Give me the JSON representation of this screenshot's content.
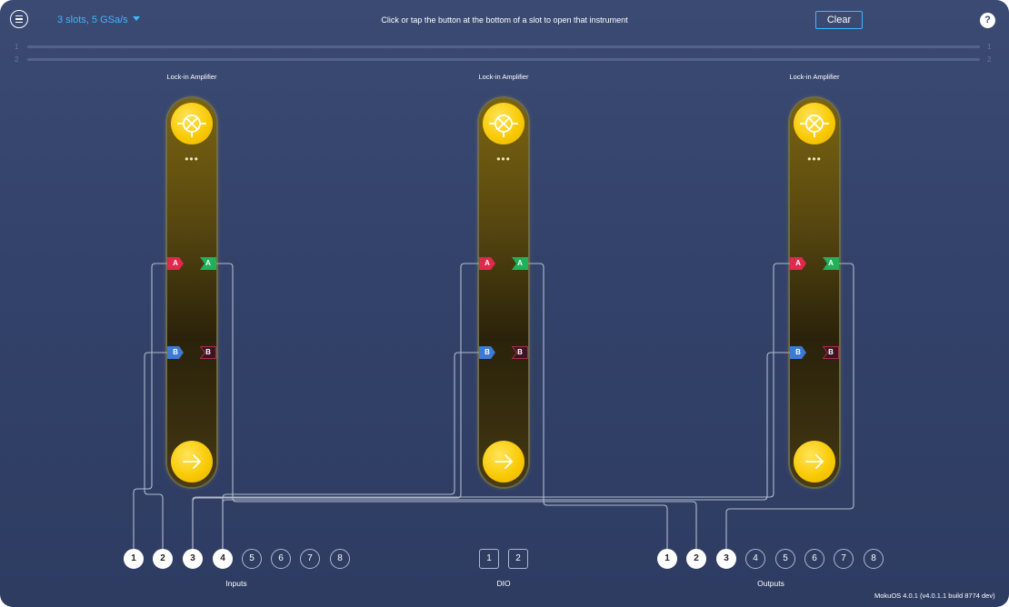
{
  "header": {
    "menu_icon": "hamburger-icon",
    "slots_label": "3 slots, 5 GSa/s",
    "hint": "Click or tap the button at the bottom of a slot to open that instrument",
    "clear_label": "Clear",
    "help_label": "?"
  },
  "tracks": [
    {
      "left": "1",
      "right": "1"
    },
    {
      "left": "2",
      "right": "2"
    }
  ],
  "slots": [
    {
      "title": "Lock-in Amplifier",
      "icon": "lock-in-crossed-circle-icon",
      "dots": "•••",
      "in_a": "A",
      "in_b": "B",
      "out_a": "A",
      "out_b": "B",
      "open_icon": "arrow-right-icon"
    },
    {
      "title": "Lock-in Amplifier",
      "icon": "lock-in-crossed-circle-icon",
      "dots": "•••",
      "in_a": "A",
      "in_b": "B",
      "out_a": "A",
      "out_b": "B",
      "open_icon": "arrow-right-icon"
    },
    {
      "title": "Lock-in Amplifier",
      "icon": "lock-in-crossed-circle-icon",
      "dots": "•••",
      "in_a": "A",
      "in_b": "B",
      "out_a": "A",
      "out_b": "B",
      "open_icon": "arrow-right-icon"
    }
  ],
  "inputs": {
    "label": "Inputs",
    "pins": [
      {
        "n": "1",
        "connected": true
      },
      {
        "n": "2",
        "connected": true
      },
      {
        "n": "3",
        "connected": true
      },
      {
        "n": "4",
        "connected": true
      },
      {
        "n": "5",
        "connected": false
      },
      {
        "n": "6",
        "connected": false
      },
      {
        "n": "7",
        "connected": false
      },
      {
        "n": "8",
        "connected": false
      }
    ]
  },
  "dio": {
    "label": "DIO",
    "pins": [
      "1",
      "2"
    ]
  },
  "outputs": {
    "label": "Outputs",
    "pins": [
      {
        "n": "1",
        "connected": true
      },
      {
        "n": "2",
        "connected": true
      },
      {
        "n": "3",
        "connected": true
      },
      {
        "n": "4",
        "connected": false
      },
      {
        "n": "5",
        "connected": false
      },
      {
        "n": "6",
        "connected": false
      },
      {
        "n": "7",
        "connected": false
      },
      {
        "n": "8",
        "connected": false
      }
    ]
  },
  "colors": {
    "accent": "#3fb6ff",
    "input_a": "#e0294c",
    "input_b": "#3d79d6",
    "output_a": "#1fb25a",
    "output_b_unused": "#4a1a2a",
    "slot_button": "#f8c800"
  },
  "footer": {
    "version": "MokuOS 4.0.1 (v4.0.1.1 build 8774 dev)"
  }
}
